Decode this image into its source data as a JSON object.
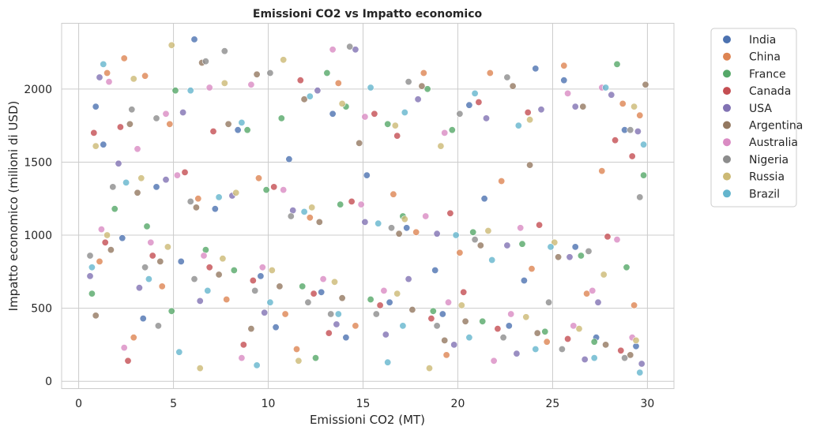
{
  "chart_data": {
    "type": "scatter",
    "title": "Emissioni CO2 vs Impatto economico",
    "xlabel": "Emissioni CO2 (MT)",
    "ylabel": "Impatto economico (milioni di USD)",
    "xlim": [
      -0.9,
      31.4
    ],
    "ylim": [
      -50,
      2450
    ],
    "xticks": [
      0,
      5,
      10,
      15,
      20,
      25,
      30
    ],
    "yticks": [
      0,
      500,
      1000,
      1500,
      2000
    ],
    "grid": true,
    "legend_position": "outside-top-right",
    "series": [
      {
        "name": "India",
        "color": "#4c72b0",
        "points": [
          [
            0.9,
            1880
          ],
          [
            6.1,
            2340
          ],
          [
            8.4,
            1720
          ],
          [
            11.1,
            1520
          ],
          [
            13.4,
            1830
          ],
          [
            15.2,
            1410
          ],
          [
            20.6,
            1890
          ],
          [
            24.1,
            2140
          ],
          [
            25.6,
            2060
          ],
          [
            28.8,
            1720
          ],
          [
            2.3,
            980
          ],
          [
            5.4,
            820
          ],
          [
            9.6,
            720
          ],
          [
            12.8,
            610
          ],
          [
            16.4,
            540
          ],
          [
            19.2,
            460
          ],
          [
            22.7,
            380
          ],
          [
            27.3,
            300
          ],
          [
            29.4,
            240
          ],
          [
            4.1,
            1330
          ],
          [
            7.2,
            1180
          ],
          [
            17.3,
            1050
          ],
          [
            21.4,
            1250
          ],
          [
            26.2,
            920
          ],
          [
            14.1,
            300
          ],
          [
            18.8,
            760
          ],
          [
            3.4,
            430
          ],
          [
            10.4,
            370
          ],
          [
            23.5,
            690
          ],
          [
            1.3,
            1620
          ]
        ]
      },
      {
        "name": "China",
        "color": "#dd8452",
        "points": [
          [
            1.5,
            2110
          ],
          [
            2.4,
            2210
          ],
          [
            3.5,
            2090
          ],
          [
            4.8,
            1760
          ],
          [
            13.7,
            2040
          ],
          [
            18.2,
            2110
          ],
          [
            21.7,
            2110
          ],
          [
            25.6,
            2160
          ],
          [
            28.7,
            1900
          ],
          [
            29.6,
            1820
          ],
          [
            1.1,
            820
          ],
          [
            4.4,
            650
          ],
          [
            7.8,
            560
          ],
          [
            10.9,
            460
          ],
          [
            14.6,
            380
          ],
          [
            17.8,
            1020
          ],
          [
            20.1,
            880
          ],
          [
            23.9,
            770
          ],
          [
            26.8,
            600
          ],
          [
            29.3,
            520
          ],
          [
            6.3,
            1250
          ],
          [
            9.5,
            1390
          ],
          [
            12.2,
            1120
          ],
          [
            16.6,
            1280
          ],
          [
            22.3,
            1370
          ],
          [
            27.6,
            1440
          ],
          [
            2.9,
            300
          ],
          [
            11.5,
            220
          ],
          [
            19.4,
            180
          ],
          [
            24.7,
            270
          ]
        ]
      },
      {
        "name": "France",
        "color": "#55a868",
        "points": [
          [
            5.1,
            1990
          ],
          [
            8.9,
            1720
          ],
          [
            10.7,
            1800
          ],
          [
            13.1,
            2110
          ],
          [
            14.1,
            1880
          ],
          [
            16.3,
            1760
          ],
          [
            18.4,
            2000
          ],
          [
            19.7,
            1720
          ],
          [
            28.4,
            2170
          ],
          [
            29.8,
            1410
          ],
          [
            1.9,
            1180
          ],
          [
            3.6,
            1060
          ],
          [
            6.7,
            900
          ],
          [
            8.2,
            760
          ],
          [
            11.8,
            650
          ],
          [
            15.4,
            560
          ],
          [
            18.7,
            480
          ],
          [
            21.3,
            410
          ],
          [
            24.6,
            340
          ],
          [
            27.2,
            270
          ],
          [
            0.7,
            600
          ],
          [
            4.9,
            480
          ],
          [
            9.9,
            1310
          ],
          [
            13.8,
            1210
          ],
          [
            17.1,
            1130
          ],
          [
            20.8,
            1020
          ],
          [
            23.4,
            940
          ],
          [
            26.5,
            860
          ],
          [
            28.9,
            780
          ],
          [
            12.5,
            160
          ]
        ]
      },
      {
        "name": "Canada",
        "color": "#c44e52",
        "points": [
          [
            0.8,
            1700
          ],
          [
            2.2,
            1740
          ],
          [
            7.1,
            1710
          ],
          [
            11.7,
            2060
          ],
          [
            15.6,
            1830
          ],
          [
            16.8,
            1680
          ],
          [
            21.1,
            1910
          ],
          [
            23.7,
            1840
          ],
          [
            28.3,
            1650
          ],
          [
            29.2,
            1540
          ],
          [
            1.4,
            950
          ],
          [
            3.9,
            860
          ],
          [
            6.9,
            780
          ],
          [
            9.2,
            690
          ],
          [
            12.4,
            600
          ],
          [
            15.9,
            520
          ],
          [
            18.6,
            430
          ],
          [
            22.1,
            360
          ],
          [
            25.8,
            290
          ],
          [
            28.6,
            210
          ],
          [
            5.6,
            1430
          ],
          [
            10.3,
            1330
          ],
          [
            14.4,
            1230
          ],
          [
            19.6,
            1150
          ],
          [
            24.3,
            1070
          ],
          [
            27.9,
            990
          ],
          [
            2.6,
            140
          ],
          [
            8.7,
            250
          ],
          [
            13.2,
            330
          ],
          [
            20.3,
            610
          ]
        ]
      },
      {
        "name": "USA",
        "color": "#8172b3",
        "points": [
          [
            1.1,
            2080
          ],
          [
            5.5,
            1840
          ],
          [
            12.6,
            1990
          ],
          [
            14.6,
            2270
          ],
          [
            17.9,
            1930
          ],
          [
            21.5,
            1800
          ],
          [
            24.4,
            1860
          ],
          [
            26.2,
            1880
          ],
          [
            28.1,
            1960
          ],
          [
            29.5,
            1710
          ],
          [
            0.6,
            720
          ],
          [
            3.2,
            640
          ],
          [
            6.4,
            550
          ],
          [
            9.8,
            470
          ],
          [
            13.6,
            390
          ],
          [
            16.2,
            320
          ],
          [
            19.8,
            250
          ],
          [
            23.1,
            190
          ],
          [
            26.7,
            150
          ],
          [
            29.7,
            120
          ],
          [
            4.6,
            1380
          ],
          [
            8.1,
            1270
          ],
          [
            11.3,
            1170
          ],
          [
            15.1,
            1090
          ],
          [
            18.9,
            1010
          ],
          [
            22.6,
            930
          ],
          [
            25.9,
            850
          ],
          [
            2.1,
            1490
          ],
          [
            17.4,
            700
          ],
          [
            27.4,
            540
          ]
        ]
      },
      {
        "name": "Argentina",
        "color": "#937860",
        "points": [
          [
            2.7,
            1760
          ],
          [
            6.5,
            2180
          ],
          [
            7.9,
            1760
          ],
          [
            9.4,
            2100
          ],
          [
            11.9,
            1930
          ],
          [
            14.8,
            1630
          ],
          [
            18.1,
            2020
          ],
          [
            22.9,
            2020
          ],
          [
            26.6,
            1880
          ],
          [
            29.9,
            2030
          ],
          [
            1.7,
            900
          ],
          [
            4.3,
            820
          ],
          [
            7.4,
            730
          ],
          [
            10.6,
            650
          ],
          [
            13.9,
            570
          ],
          [
            17.6,
            490
          ],
          [
            20.4,
            410
          ],
          [
            24.2,
            330
          ],
          [
            27.8,
            250
          ],
          [
            29.1,
            180
          ],
          [
            3.1,
            1290
          ],
          [
            6.2,
            1190
          ],
          [
            12.7,
            1090
          ],
          [
            16.9,
            1010
          ],
          [
            21.2,
            930
          ],
          [
            25.3,
            850
          ],
          [
            0.9,
            450
          ],
          [
            9.1,
            360
          ],
          [
            19.3,
            280
          ],
          [
            23.8,
            1480
          ]
        ]
      },
      {
        "name": "Australia",
        "color": "#da8bc3",
        "points": [
          [
            1.6,
            2050
          ],
          [
            3.1,
            1590
          ],
          [
            4.6,
            1830
          ],
          [
            6.9,
            2010
          ],
          [
            9.1,
            2030
          ],
          [
            13.4,
            2270
          ],
          [
            15.1,
            1810
          ],
          [
            19.3,
            1700
          ],
          [
            25.8,
            1970
          ],
          [
            27.6,
            2010
          ],
          [
            1.2,
            1040
          ],
          [
            3.8,
            950
          ],
          [
            6.6,
            860
          ],
          [
            9.7,
            780
          ],
          [
            12.9,
            700
          ],
          [
            16.1,
            620
          ],
          [
            19.5,
            540
          ],
          [
            22.8,
            460
          ],
          [
            26.1,
            380
          ],
          [
            29.2,
            300
          ],
          [
            5.2,
            1410
          ],
          [
            10.8,
            1310
          ],
          [
            14.9,
            1210
          ],
          [
            18.3,
            1130
          ],
          [
            23.3,
            1050
          ],
          [
            28.4,
            970
          ],
          [
            2.4,
            230
          ],
          [
            8.6,
            160
          ],
          [
            21.9,
            140
          ],
          [
            27.1,
            620
          ]
        ]
      },
      {
        "name": "Nigeria",
        "color": "#8c8c8c",
        "points": [
          [
            2.8,
            1860
          ],
          [
            4.1,
            1800
          ],
          [
            6.7,
            2190
          ],
          [
            7.7,
            2260
          ],
          [
            10.1,
            2110
          ],
          [
            14.3,
            2290
          ],
          [
            17.4,
            2050
          ],
          [
            20.1,
            1830
          ],
          [
            22.6,
            2080
          ],
          [
            29.1,
            1720
          ],
          [
            0.6,
            860
          ],
          [
            3.5,
            780
          ],
          [
            6.1,
            700
          ],
          [
            9.3,
            620
          ],
          [
            12.1,
            540
          ],
          [
            15.7,
            460
          ],
          [
            18.9,
            380
          ],
          [
            22.4,
            300
          ],
          [
            25.5,
            220
          ],
          [
            28.8,
            160
          ],
          [
            1.8,
            1330
          ],
          [
            5.9,
            1230
          ],
          [
            11.2,
            1130
          ],
          [
            16.5,
            1050
          ],
          [
            20.9,
            970
          ],
          [
            26.9,
            890
          ],
          [
            4.2,
            380
          ],
          [
            13.3,
            460
          ],
          [
            24.8,
            540
          ],
          [
            29.6,
            1260
          ]
        ]
      },
      {
        "name": "Russia",
        "color": "#ccb974",
        "points": [
          [
            0.9,
            1610
          ],
          [
            2.9,
            2070
          ],
          [
            4.9,
            2300
          ],
          [
            7.7,
            2040
          ],
          [
            10.8,
            2200
          ],
          [
            13.9,
            1900
          ],
          [
            16.7,
            1750
          ],
          [
            19.1,
            1610
          ],
          [
            23.8,
            1790
          ],
          [
            29.3,
            1880
          ],
          [
            1.5,
            1000
          ],
          [
            4.7,
            920
          ],
          [
            7.6,
            840
          ],
          [
            10.2,
            760
          ],
          [
            13.5,
            680
          ],
          [
            16.8,
            600
          ],
          [
            20.2,
            520
          ],
          [
            23.6,
            440
          ],
          [
            26.4,
            360
          ],
          [
            29.4,
            280
          ],
          [
            3.3,
            1390
          ],
          [
            8.3,
            1290
          ],
          [
            12.3,
            1190
          ],
          [
            17.2,
            1110
          ],
          [
            21.6,
            1030
          ],
          [
            25.1,
            950
          ],
          [
            6.4,
            90
          ],
          [
            11.6,
            140
          ],
          [
            18.5,
            90
          ],
          [
            27.7,
            730
          ]
        ]
      },
      {
        "name": "Brazil",
        "color": "#64b5cd",
        "points": [
          [
            1.3,
            2170
          ],
          [
            5.9,
            1990
          ],
          [
            8.6,
            1770
          ],
          [
            12.2,
            1950
          ],
          [
            15.4,
            2010
          ],
          [
            17.2,
            1840
          ],
          [
            20.9,
            1970
          ],
          [
            23.2,
            1750
          ],
          [
            27.8,
            2010
          ],
          [
            29.8,
            1620
          ],
          [
            0.7,
            780
          ],
          [
            3.7,
            700
          ],
          [
            6.8,
            620
          ],
          [
            10.1,
            540
          ],
          [
            13.7,
            460
          ],
          [
            17.1,
            380
          ],
          [
            20.6,
            300
          ],
          [
            24.1,
            220
          ],
          [
            27.2,
            160
          ],
          [
            29.6,
            60
          ],
          [
            2.5,
            1360
          ],
          [
            7.4,
            1260
          ],
          [
            11.9,
            1160
          ],
          [
            15.8,
            1080
          ],
          [
            19.9,
            1000
          ],
          [
            24.9,
            920
          ],
          [
            5.3,
            200
          ],
          [
            9.4,
            110
          ],
          [
            16.3,
            130
          ],
          [
            21.8,
            830
          ]
        ]
      }
    ]
  }
}
